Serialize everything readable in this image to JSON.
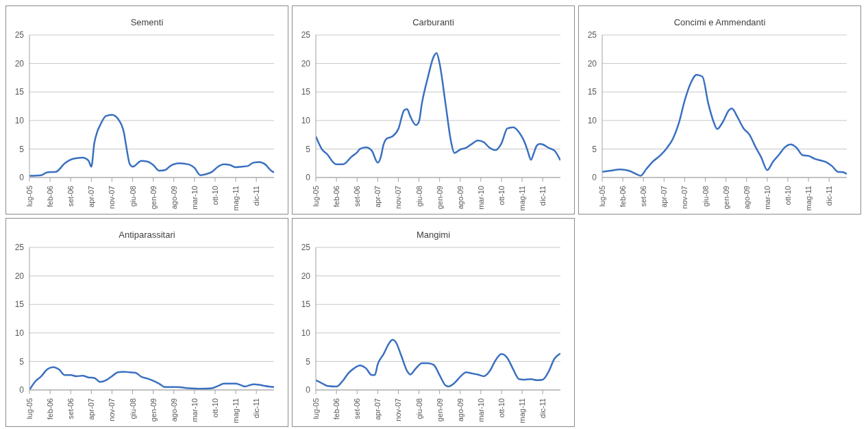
{
  "chart_data": [
    {
      "type": "line",
      "title": "Sementi",
      "color": "#3a70c0",
      "marker": "none",
      "grid": "y",
      "ylim": [
        0,
        25
      ],
      "yticks": [
        0,
        5,
        10,
        15,
        20,
        25
      ],
      "xlim": [
        "2005-07",
        "2012-06"
      ],
      "xticks": [
        {
          "value": "2005-07",
          "label": "lug-05"
        },
        {
          "value": "2006-02",
          "label": "feb-06"
        },
        {
          "value": "2006-09",
          "label": "set-06"
        },
        {
          "value": "2007-04",
          "label": "apr-07"
        },
        {
          "value": "2007-11",
          "label": "nov-07"
        },
        {
          "value": "2008-06",
          "label": "giu-08"
        },
        {
          "value": "2009-01",
          "label": "gen-09"
        },
        {
          "value": "2009-08",
          "label": "ago-09"
        },
        {
          "value": "2010-03",
          "label": "mar-10"
        },
        {
          "value": "2010-10",
          "label": "ott-10"
        },
        {
          "value": "2011-05",
          "label": "mag-11"
        },
        {
          "value": "2011-12",
          "label": "dic-11"
        }
      ],
      "x": [
        "2005-07",
        "2005-11",
        "2006-01",
        "2006-04",
        "2006-07",
        "2006-10",
        "2007-01",
        "2007-03",
        "2007-04",
        "2007-05",
        "2007-06",
        "2007-07",
        "2007-09",
        "2007-11",
        "2008-01",
        "2008-03",
        "2008-04",
        "2008-05",
        "2008-06",
        "2008-09",
        "2008-11",
        "2009-01",
        "2009-03",
        "2009-05",
        "2009-07",
        "2009-10",
        "2010-01",
        "2010-03",
        "2010-05",
        "2010-07",
        "2010-09",
        "2010-11",
        "2011-01",
        "2011-03",
        "2011-05",
        "2011-07",
        "2011-09",
        "2011-11",
        "2012-01",
        "2012-03",
        "2012-05",
        "2012-06"
      ],
      "values": [
        0.3,
        0.4,
        0.9,
        1.0,
        2.5,
        3.3,
        3.5,
        3.0,
        1.9,
        6.0,
        8.0,
        9.2,
        10.8,
        11.0,
        10.3,
        8.0,
        5.0,
        2.4,
        1.9,
        2.9,
        2.8,
        2.2,
        1.2,
        1.3,
        2.1,
        2.5,
        2.3,
        1.7,
        0.4,
        0.6,
        1.0,
        1.9,
        2.3,
        2.2,
        1.8,
        1.9,
        2.0,
        2.6,
        2.7,
        2.3,
        1.2,
        0.9
      ]
    },
    {
      "type": "line",
      "title": "Carburanti",
      "color": "#3a70c0",
      "marker": "none",
      "grid": "y",
      "ylim": [
        0,
        25
      ],
      "yticks": [
        0,
        5,
        10,
        15,
        20,
        25
      ],
      "xlim": [
        "2005-07",
        "2012-06"
      ],
      "xticks": [
        {
          "value": "2005-07",
          "label": "lug-05"
        },
        {
          "value": "2006-02",
          "label": "feb-06"
        },
        {
          "value": "2006-09",
          "label": "set-06"
        },
        {
          "value": "2007-04",
          "label": "apr-07"
        },
        {
          "value": "2007-11",
          "label": "nov-07"
        },
        {
          "value": "2008-06",
          "label": "giu-08"
        },
        {
          "value": "2009-01",
          "label": "gen-09"
        },
        {
          "value": "2009-08",
          "label": "ago-09"
        },
        {
          "value": "2010-03",
          "label": "mar-10"
        },
        {
          "value": "2010-10",
          "label": "ott-10"
        },
        {
          "value": "2011-05",
          "label": "mag-11"
        },
        {
          "value": "2011-12",
          "label": "dic-11"
        }
      ],
      "x": [
        "2005-07",
        "2005-09",
        "2005-11",
        "2006-01",
        "2006-02",
        "2006-04",
        "2006-05",
        "2006-07",
        "2006-09",
        "2006-10",
        "2006-12",
        "2007-02",
        "2007-04",
        "2007-05",
        "2007-06",
        "2007-07",
        "2007-09",
        "2007-11",
        "2008-01",
        "2008-02",
        "2008-03",
        "2008-05",
        "2008-06",
        "2008-07",
        "2008-09",
        "2008-11",
        "2008-12",
        "2009-01",
        "2009-03",
        "2009-05",
        "2009-06",
        "2009-08",
        "2009-10",
        "2009-12",
        "2010-02",
        "2010-04",
        "2010-06",
        "2010-08",
        "2010-10",
        "2010-12",
        "2011-02",
        "2011-04",
        "2011-06",
        "2011-07",
        "2011-08",
        "2011-09",
        "2011-10",
        "2011-11",
        "2011-12",
        "2012-02",
        "2012-04",
        "2012-06"
      ],
      "values": [
        7.2,
        5.0,
        4.0,
        2.6,
        2.3,
        2.3,
        2.5,
        3.6,
        4.4,
        5.0,
        5.3,
        4.7,
        2.6,
        3.5,
        5.8,
        6.8,
        7.2,
        8.5,
        11.8,
        12.0,
        10.8,
        9.2,
        9.8,
        13.0,
        17.5,
        21.2,
        21.8,
        20.0,
        13.0,
        6.0,
        4.3,
        4.9,
        5.2,
        5.9,
        6.5,
        6.2,
        5.2,
        4.8,
        6.0,
        8.6,
        8.8,
        7.9,
        6.0,
        4.5,
        3.1,
        4.3,
        5.6,
        5.9,
        5.8,
        5.2,
        4.7,
        3.0
      ]
    },
    {
      "type": "line",
      "title": "Concimi e Ammendanti",
      "color": "#3a70c0",
      "marker": "none",
      "grid": "y",
      "ylim": [
        0,
        25
      ],
      "yticks": [
        0,
        5,
        10,
        15,
        20,
        25
      ],
      "xlim": [
        "2005-07",
        "2012-06"
      ],
      "xticks": [
        {
          "value": "2005-07",
          "label": "lug-05"
        },
        {
          "value": "2006-02",
          "label": "feb-06"
        },
        {
          "value": "2006-09",
          "label": "set-06"
        },
        {
          "value": "2007-04",
          "label": "apr-07"
        },
        {
          "value": "2007-11",
          "label": "nov-07"
        },
        {
          "value": "2008-06",
          "label": "giu-08"
        },
        {
          "value": "2009-01",
          "label": "gen-09"
        },
        {
          "value": "2009-08",
          "label": "ago-09"
        },
        {
          "value": "2010-03",
          "label": "mar-10"
        },
        {
          "value": "2010-10",
          "label": "ott-10"
        },
        {
          "value": "2011-05",
          "label": "mag-11"
        },
        {
          "value": "2011-12",
          "label": "dic-11"
        }
      ],
      "x": [
        "2005-07",
        "2005-10",
        "2006-01",
        "2006-04",
        "2006-07",
        "2006-08",
        "2006-10",
        "2006-12",
        "2007-03",
        "2007-05",
        "2007-07",
        "2007-09",
        "2007-11",
        "2008-01",
        "2008-03",
        "2008-05",
        "2008-07",
        "2008-09",
        "2008-10",
        "2008-12",
        "2009-02",
        "2009-03",
        "2009-05",
        "2009-07",
        "2009-09",
        "2009-11",
        "2010-01",
        "2010-03",
        "2010-05",
        "2010-07",
        "2010-09",
        "2010-11",
        "2011-01",
        "2011-03",
        "2011-05",
        "2011-07",
        "2011-09",
        "2011-11",
        "2012-01",
        "2012-03",
        "2012-05",
        "2012-06"
      ],
      "values": [
        1.0,
        1.2,
        1.4,
        1.2,
        0.5,
        0.3,
        1.5,
        2.7,
        4.0,
        5.2,
        6.8,
        9.5,
        13.5,
        16.5,
        18.0,
        17.7,
        13.0,
        9.5,
        8.5,
        9.8,
        11.8,
        12.1,
        10.5,
        8.6,
        7.5,
        5.4,
        3.5,
        1.3,
        2.8,
        4.0,
        5.3,
        5.8,
        5.2,
        3.9,
        3.8,
        3.3,
        3.0,
        2.7,
        2.0,
        1.0,
        0.9,
        0.6
      ]
    },
    {
      "type": "line",
      "title": "Antiparassitari",
      "color": "#3a70c0",
      "marker": "none",
      "grid": "y",
      "ylim": [
        0,
        25
      ],
      "yticks": [
        0,
        5,
        10,
        15,
        20,
        25
      ],
      "xlim": [
        "2005-07",
        "2012-06"
      ],
      "xticks": [
        {
          "value": "2005-07",
          "label": "lug-05"
        },
        {
          "value": "2006-02",
          "label": "feb-06"
        },
        {
          "value": "2006-09",
          "label": "set-06"
        },
        {
          "value": "2007-04",
          "label": "apr-07"
        },
        {
          "value": "2007-11",
          "label": "nov-07"
        },
        {
          "value": "2008-06",
          "label": "giu-08"
        },
        {
          "value": "2009-01",
          "label": "gen-09"
        },
        {
          "value": "2009-08",
          "label": "ago-09"
        },
        {
          "value": "2010-03",
          "label": "mar-10"
        },
        {
          "value": "2010-10",
          "label": "ott-10"
        },
        {
          "value": "2011-05",
          "label": "mag-11"
        },
        {
          "value": "2011-12",
          "label": "dic-11"
        }
      ],
      "x": [
        "2005-07",
        "2005-09",
        "2005-11",
        "2006-01",
        "2006-03",
        "2006-05",
        "2006-07",
        "2006-09",
        "2006-11",
        "2007-01",
        "2007-03",
        "2007-05",
        "2007-07",
        "2007-09",
        "2007-11",
        "2008-01",
        "2008-03",
        "2008-05",
        "2008-07",
        "2008-09",
        "2008-11",
        "2009-01",
        "2009-03",
        "2009-05",
        "2009-09",
        "2010-01",
        "2010-05",
        "2010-09",
        "2010-11",
        "2011-01",
        "2011-05",
        "2011-07",
        "2011-08",
        "2011-11",
        "2012-01",
        "2012-03",
        "2012-06"
      ],
      "values": [
        0,
        1.5,
        2.4,
        3.6,
        4.0,
        3.6,
        2.6,
        2.6,
        2.4,
        2.5,
        2.2,
        2.1,
        1.4,
        1.7,
        2.4,
        3.1,
        3.2,
        3.1,
        3.0,
        2.3,
        2.0,
        1.6,
        1.1,
        0.5,
        0.5,
        0.3,
        0.2,
        0.3,
        0.7,
        1.1,
        1.1,
        0.8,
        0.6,
        1.0,
        0.9,
        0.7,
        0.5
      ]
    },
    {
      "type": "line",
      "title": "Mangimi",
      "color": "#3a70c0",
      "marker": "none",
      "grid": "y",
      "ylim": [
        0,
        25
      ],
      "yticks": [
        0,
        5,
        10,
        15,
        20,
        25
      ],
      "xlim": [
        "2005-07",
        "2012-06"
      ],
      "xticks": [
        {
          "value": "2005-07",
          "label": "lug-05"
        },
        {
          "value": "2006-02",
          "label": "feb-06"
        },
        {
          "value": "2006-09",
          "label": "set-06"
        },
        {
          "value": "2007-04",
          "label": "apr-07"
        },
        {
          "value": "2007-11",
          "label": "nov-07"
        },
        {
          "value": "2008-06",
          "label": "giu-08"
        },
        {
          "value": "2009-01",
          "label": "gen-09"
        },
        {
          "value": "2009-08",
          "label": "ago-09"
        },
        {
          "value": "2010-03",
          "label": "mar-10"
        },
        {
          "value": "2010-10",
          "label": "ott-10"
        },
        {
          "value": "2011-05",
          "label": "mag-11"
        },
        {
          "value": "2011-12",
          "label": "dic-11"
        }
      ],
      "x": [
        "2005-07",
        "2005-09",
        "2005-11",
        "2006-02",
        "2006-04",
        "2006-06",
        "2006-08",
        "2006-10",
        "2006-12",
        "2007-02",
        "2007-03",
        "2007-04",
        "2007-06",
        "2007-08",
        "2007-09",
        "2007-10",
        "2007-12",
        "2008-02",
        "2008-03",
        "2008-05",
        "2008-07",
        "2008-09",
        "2008-11",
        "2009-01",
        "2009-03",
        "2009-04",
        "2009-06",
        "2009-08",
        "2009-10",
        "2009-12",
        "2010-02",
        "2010-04",
        "2010-06",
        "2010-08",
        "2010-10",
        "2010-12",
        "2011-02",
        "2011-04",
        "2011-06",
        "2011-08",
        "2011-10",
        "2011-12",
        "2012-02",
        "2012-04",
        "2012-06"
      ],
      "values": [
        1.7,
        1.2,
        0.7,
        0.6,
        1.5,
        2.9,
        3.8,
        4.3,
        3.8,
        2.6,
        2.6,
        4.5,
        6.3,
        8.3,
        8.8,
        8.5,
        6.0,
        3.3,
        2.7,
        3.8,
        4.7,
        4.7,
        4.4,
        2.6,
        0.8,
        0.6,
        1.2,
        2.3,
        3.1,
        2.9,
        2.7,
        2.4,
        3.3,
        5.2,
        6.3,
        5.6,
        3.6,
        1.9,
        1.8,
        1.9,
        1.7,
        1.8,
        3.2,
        5.5,
        6.4
      ]
    }
  ]
}
